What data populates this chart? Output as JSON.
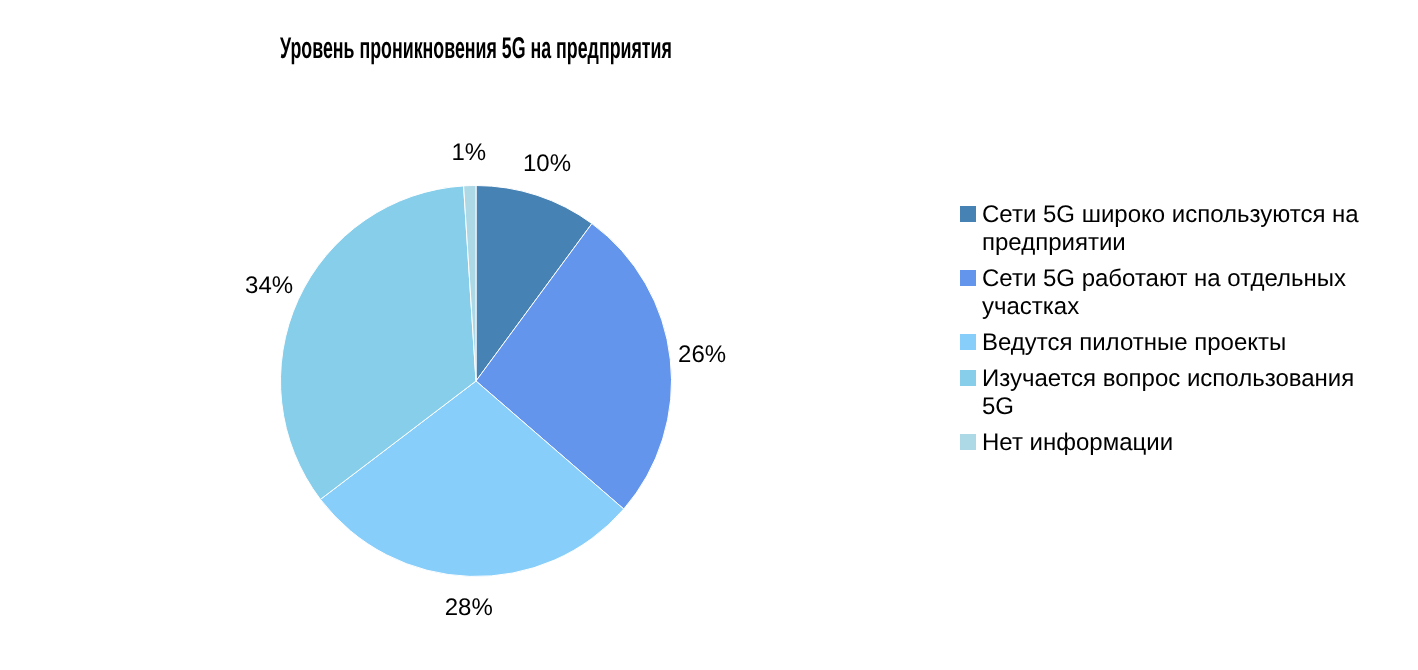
{
  "chart_data": {
    "type": "pie",
    "title": "Уровень проникновения 5G на предприятия",
    "categories": [
      "Сети 5G широко используются на предприятии",
      "Сети 5G работают на отдельных участках",
      "Ведутся пилотные проекты",
      "Изучается вопрос использования 5G",
      "Нет информации"
    ],
    "values": [
      10,
      26,
      28,
      34,
      1
    ],
    "colors": [
      "#4682b4",
      "#6495ed",
      "#87cefa",
      "#87ceeb",
      "#add8e6"
    ],
    "value_labels": [
      "10%",
      "26%",
      "28%",
      "34%",
      "1%"
    ],
    "legend": "right"
  }
}
